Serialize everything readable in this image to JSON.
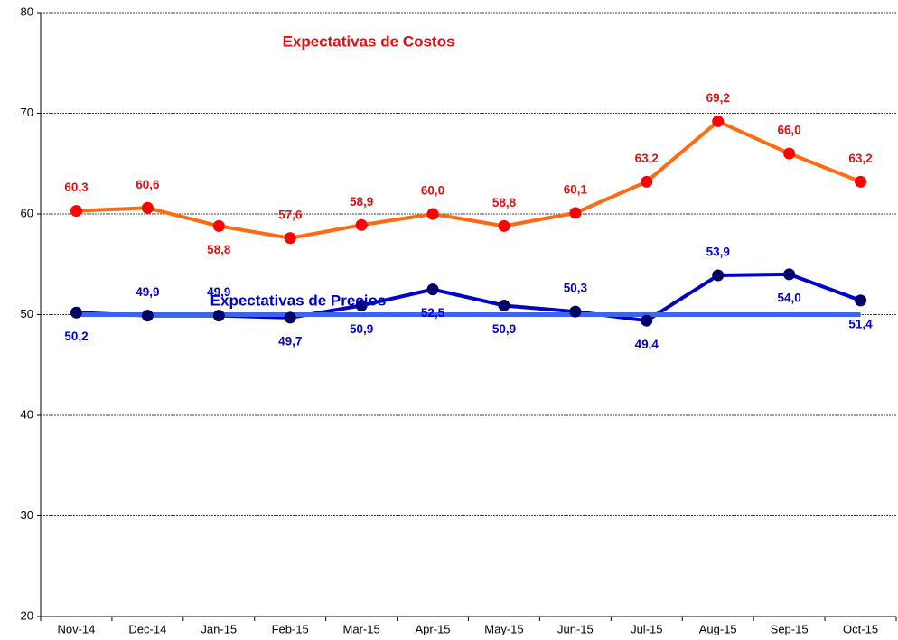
{
  "chart_data": {
    "type": "line",
    "categories": [
      "Nov-14",
      "Dec-14",
      "Jan-15",
      "Feb-15",
      "Mar-15",
      "Apr-15",
      "May-15",
      "Jun-15",
      "Jul-15",
      "Aug-15",
      "Sep-15",
      "Oct-15"
    ],
    "series": [
      {
        "name": "Expectativas de Costos",
        "color": "#ff6a13",
        "marker_color": "#ff0000",
        "label_color": "#e01010",
        "values": [
          60.3,
          60.6,
          58.8,
          57.6,
          58.9,
          60.0,
          58.8,
          60.1,
          63.2,
          69.2,
          66.0,
          63.2
        ],
        "value_labels": [
          "60,3",
          "60,6",
          "58,8",
          "57,6",
          "58,9",
          "60,0",
          "58,8",
          "60,1",
          "63,2",
          "69,2",
          "66,0",
          "63,2"
        ]
      },
      {
        "name": "Expectativas de Precios",
        "color": "#0000cc",
        "marker_color": "#000066",
        "label_color": "#0000cc",
        "values": [
          50.2,
          49.9,
          49.9,
          49.7,
          50.9,
          52.5,
          50.9,
          50.3,
          49.4,
          53.9,
          54.0,
          51.4
        ],
        "value_labels": [
          "50,2",
          "49,9",
          "49,9",
          "49,7",
          "50,9",
          "52,5",
          "50,9",
          "50,3",
          "49,4",
          "53,9",
          "54,0",
          "51,4"
        ]
      }
    ],
    "reference_line": {
      "value": 50,
      "color": "#3a66ee"
    },
    "ylim": [
      20,
      80
    ],
    "yticks": [
      20,
      30,
      40,
      50,
      60,
      70,
      80
    ],
    "grid": true
  }
}
